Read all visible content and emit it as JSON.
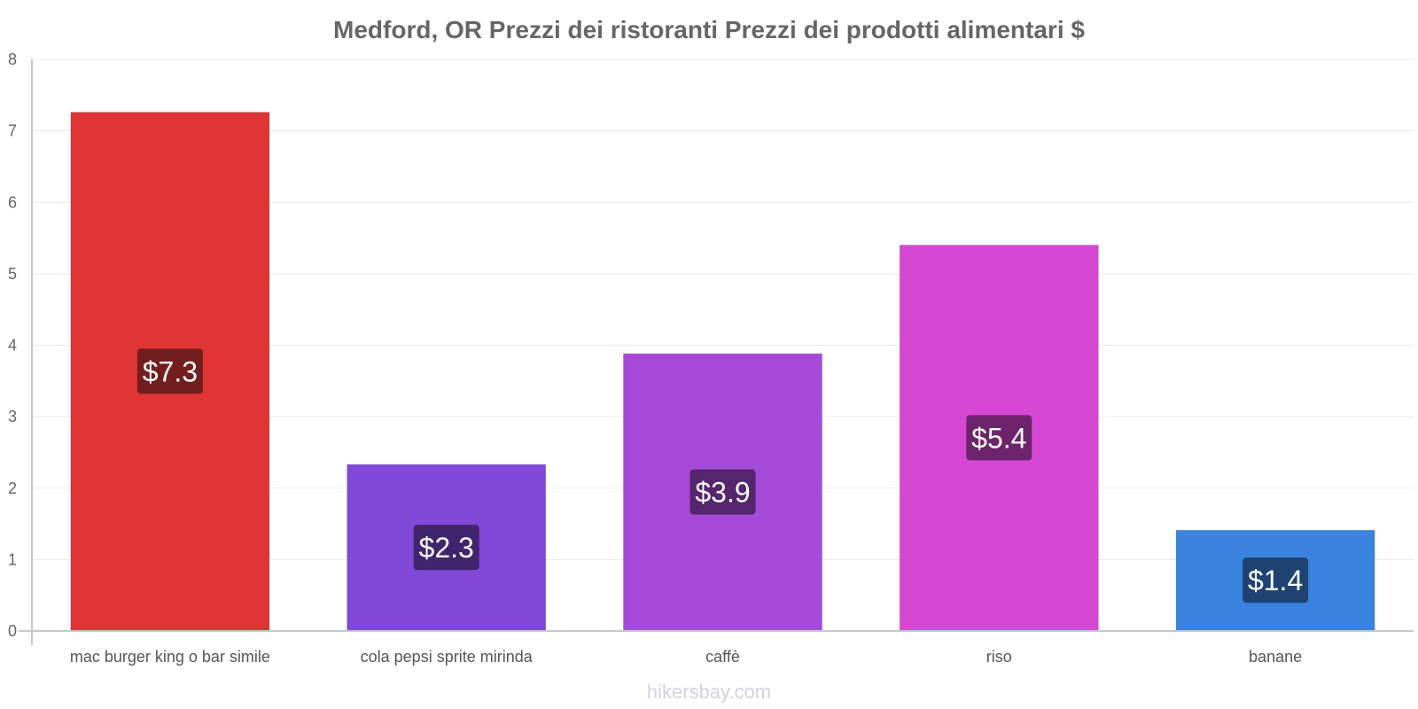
{
  "chart_data": {
    "type": "bar",
    "title": "Medford, OR Prezzi dei ristoranti Prezzi dei prodotti alimentari $",
    "categories": [
      "mac burger king o bar simile",
      "cola pepsi sprite mirinda",
      "caffè",
      "riso",
      "banane"
    ],
    "values": [
      7.26,
      2.33,
      3.88,
      5.4,
      1.41
    ],
    "value_labels": [
      "$7.3",
      "$2.3",
      "$3.9",
      "$5.4",
      "$1.4"
    ],
    "bar_colors": [
      "#e03535",
      "#8049d8",
      "#a64ad8",
      "#d647d4",
      "#3a84e0"
    ],
    "label_box_colors": [
      "#731e1e",
      "#41246e",
      "#55256e",
      "#6d246c",
      "#1e4372"
    ],
    "yticks": [
      "0",
      "1",
      "2",
      "3",
      "4",
      "5",
      "6",
      "7",
      "8"
    ],
    "ylim": [
      0,
      8
    ],
    "xlabel": "",
    "ylabel": "",
    "grid": true
  },
  "watermark": "hikersbay.com"
}
